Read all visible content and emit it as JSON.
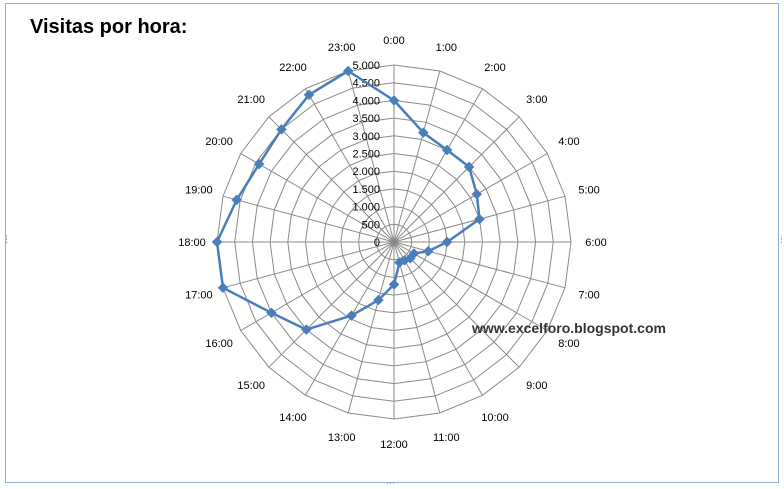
{
  "chart_data": {
    "type": "radar",
    "title": "Visitas por hora:",
    "watermark": "www.excelforo.blogspot.com",
    "categories": [
      "0:00",
      "1:00",
      "2:00",
      "3:00",
      "4:00",
      "5:00",
      "6:00",
      "7:00",
      "8:00",
      "9:00",
      "10:00",
      "11:00",
      "12:00",
      "13:00",
      "14:00",
      "15:00",
      "16:00",
      "17:00",
      "18:00",
      "19:00",
      "20:00",
      "21:00",
      "22:00",
      "23:00"
    ],
    "tick_labels": [
      "0",
      "500",
      "1.000",
      "1.500",
      "2.000",
      "2.500",
      "3.000",
      "3.500",
      "4.000",
      "4.500",
      "5.000"
    ],
    "ylim": [
      0,
      5000
    ],
    "major_unit": 500,
    "grid": true,
    "series": [
      {
        "color": "#4a7ebb",
        "marker": "diamond",
        "values": [
          4000,
          3200,
          3000,
          3000,
          2700,
          2500,
          1500,
          1000,
          650,
          650,
          600,
          600,
          1200,
          1700,
          2400,
          3500,
          4000,
          5000,
          5000,
          4600,
          4400,
          4500,
          4800,
          5000
        ]
      }
    ]
  }
}
